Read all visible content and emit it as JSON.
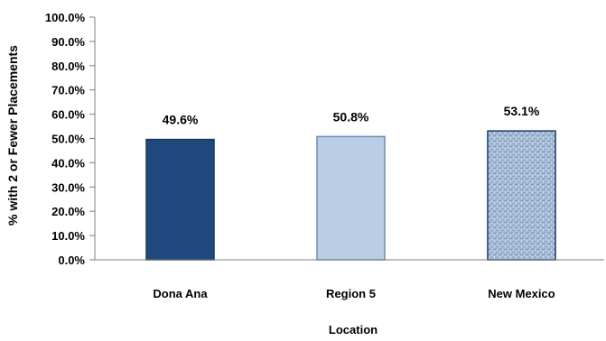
{
  "chart_data": {
    "type": "bar",
    "categories": [
      "Dona Ana",
      "Region 5",
      "New Mexico"
    ],
    "values": [
      49.6,
      50.8,
      53.1
    ],
    "value_labels": [
      "49.6%",
      "50.8%",
      "53.1%"
    ],
    "title": "",
    "xlabel": "Location",
    "ylabel": "% with 2 or Fewer Placements",
    "ylim": [
      0,
      100
    ],
    "yticks": [
      0,
      10,
      20,
      30,
      40,
      50,
      60,
      70,
      80,
      90,
      100
    ],
    "ytick_labels": [
      "0.0%",
      "10.0%",
      "20.0%",
      "30.0%",
      "40.0%",
      "50.0%",
      "60.0%",
      "70.0%",
      "80.0%",
      "90.0%",
      "100.0%"
    ],
    "grid": false,
    "legend": "none",
    "bar_fills": [
      "#1F497D",
      "#B9CDE5",
      "#A8BDD8"
    ],
    "bar_patterns": [
      "solid",
      "solid",
      "textured"
    ],
    "bar_strokes": [
      "#17375E",
      "#6E8BB3",
      "#17375E"
    ]
  }
}
